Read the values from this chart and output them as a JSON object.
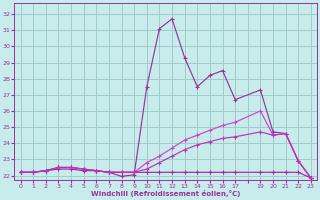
{
  "background_color": "#c8ecec",
  "grid_color": "#a0cccc",
  "line_color": "#993399",
  "xlabel": "Windchill (Refroidissement éolien,°C)",
  "xlim": [
    -0.5,
    23.5
  ],
  "ylim": [
    21.7,
    32.7
  ],
  "yticks": [
    22,
    23,
    24,
    25,
    26,
    27,
    28,
    29,
    30,
    31,
    32
  ],
  "xtick_labels": [
    "0",
    "1",
    "2",
    "3",
    "4",
    "5",
    "6",
    "7",
    "8",
    "9",
    "10",
    "11",
    "12",
    "13",
    "14",
    "15",
    "16",
    "17",
    "",
    "19",
    "20",
    "21",
    "22",
    "23"
  ],
  "xtick_positions": [
    0,
    1,
    2,
    3,
    4,
    5,
    6,
    7,
    8,
    9,
    10,
    11,
    12,
    13,
    14,
    15,
    16,
    17,
    18,
    19,
    20,
    21,
    22,
    23
  ],
  "series": [
    {
      "x": [
        0,
        1,
        2,
        3,
        4,
        5,
        6,
        7,
        8,
        9,
        10,
        11,
        12,
        13,
        14,
        15,
        16,
        17,
        19,
        20,
        21,
        22,
        23
      ],
      "y": [
        22.2,
        22.2,
        22.3,
        22.5,
        22.5,
        22.4,
        22.3,
        22.2,
        21.95,
        22.05,
        27.5,
        31.1,
        31.7,
        29.3,
        27.5,
        28.2,
        28.5,
        26.7,
        27.3,
        24.7,
        24.6,
        22.9,
        21.85
      ],
      "color": "#993399"
    },
    {
      "x": [
        0,
        1,
        2,
        3,
        4,
        5,
        6,
        7,
        8,
        9,
        10,
        11,
        12,
        13,
        14,
        15,
        16,
        17,
        19,
        20,
        21,
        22,
        23
      ],
      "y": [
        22.2,
        22.2,
        22.3,
        22.5,
        22.5,
        22.4,
        22.3,
        22.2,
        22.2,
        22.2,
        22.8,
        23.2,
        23.7,
        24.2,
        24.5,
        24.8,
        25.1,
        25.3,
        26.0,
        24.5,
        24.6,
        22.9,
        21.85
      ],
      "color": "#cc44cc"
    },
    {
      "x": [
        0,
        1,
        2,
        3,
        4,
        5,
        6,
        7,
        8,
        9,
        10,
        11,
        12,
        13,
        14,
        15,
        16,
        17,
        19,
        20,
        21,
        22,
        23
      ],
      "y": [
        22.2,
        22.2,
        22.3,
        22.4,
        22.4,
        22.3,
        22.3,
        22.2,
        22.2,
        22.2,
        22.2,
        22.2,
        22.2,
        22.2,
        22.2,
        22.2,
        22.2,
        22.2,
        22.2,
        22.2,
        22.2,
        22.2,
        21.85
      ],
      "color": "#aa22aa"
    },
    {
      "x": [
        0,
        1,
        2,
        3,
        4,
        5,
        6,
        7,
        8,
        9,
        10,
        11,
        12,
        13,
        14,
        15,
        16,
        17,
        19,
        20,
        21,
        22,
        23
      ],
      "y": [
        22.2,
        22.2,
        22.3,
        22.5,
        22.5,
        22.4,
        22.3,
        22.2,
        22.2,
        22.2,
        22.4,
        22.8,
        23.2,
        23.6,
        23.9,
        24.1,
        24.3,
        24.4,
        24.7,
        24.5,
        24.6,
        22.9,
        21.85
      ],
      "color": "#bb33bb"
    }
  ]
}
